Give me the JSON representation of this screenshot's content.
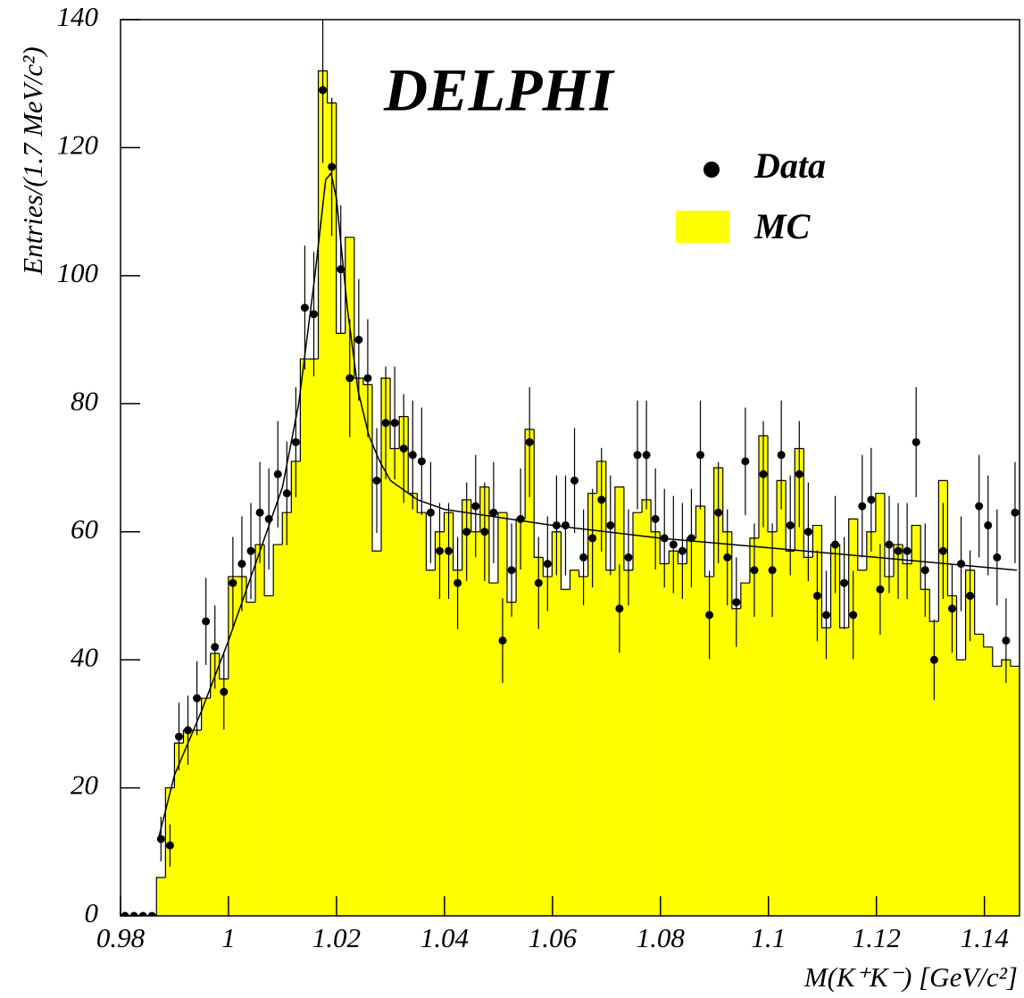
{
  "chart_data": {
    "type": "histogram",
    "annotation": "DELPHI",
    "x_label": "M(K⁺K⁻) [GeV/c²]",
    "y_label": "Entries/(1.7 MeV/c²)",
    "xlim": [
      0.98,
      1.1465
    ],
    "ylim": [
      0,
      140
    ],
    "xticks": [
      0.98,
      1,
      1.02,
      1.04,
      1.06,
      1.08,
      1.1,
      1.12,
      1.14
    ],
    "yticks": [
      0,
      20,
      40,
      60,
      80,
      100,
      120,
      140
    ],
    "legend": "upper right",
    "bins": [
      0.98,
      0.981665,
      0.98333,
      0.984995,
      0.98666,
      0.988325,
      0.98999,
      0.991655,
      0.99332,
      0.994985,
      0.99665,
      0.998315,
      0.99998,
      1.001645,
      1.00331,
      1.004975,
      1.00664,
      1.008305,
      1.00997,
      1.011635,
      1.0133,
      1.014965,
      1.01663,
      1.018295,
      1.01996,
      1.021625,
      1.02329,
      1.024955,
      1.02662,
      1.028285,
      1.02995,
      1.031615,
      1.03328,
      1.034945,
      1.03661,
      1.038275,
      1.03994,
      1.041605,
      1.04327,
      1.044935,
      1.0466,
      1.048265,
      1.04993,
      1.051595,
      1.05326,
      1.054925,
      1.05659,
      1.058255,
      1.05992,
      1.061585,
      1.06325,
      1.064915,
      1.06658,
      1.068245,
      1.06991,
      1.071575,
      1.07324,
      1.074905,
      1.07657,
      1.078235,
      1.0799,
      1.081565,
      1.08323,
      1.084895,
      1.08656,
      1.088225,
      1.08989,
      1.091555,
      1.09322,
      1.094885,
      1.09655,
      1.098215,
      1.09988,
      1.101545,
      1.10321,
      1.104875,
      1.10654,
      1.108205,
      1.10987,
      1.111535,
      1.1132,
      1.114865,
      1.11653,
      1.118195,
      1.11986,
      1.121525,
      1.12319,
      1.124855,
      1.12652,
      1.128185,
      1.12985,
      1.131515,
      1.13318,
      1.134845,
      1.13651,
      1.138175,
      1.13984,
      1.141505,
      1.14317,
      1.144835,
      1.1465
    ],
    "series": [
      {
        "name": "Data",
        "color": "#000000",
        "values": [
          0,
          0,
          0,
          0,
          12,
          11,
          28,
          29,
          34,
          46,
          42,
          35,
          52,
          55,
          57,
          63,
          62,
          69,
          66,
          74,
          95,
          94,
          129,
          117,
          101,
          84,
          90,
          84,
          68,
          77,
          77,
          73,
          72,
          71,
          63,
          57,
          57,
          52,
          60,
          64,
          60,
          63,
          43,
          54,
          62,
          74,
          52,
          55,
          61,
          61,
          68,
          56,
          59,
          65,
          61,
          48,
          56,
          72,
          72,
          62,
          59,
          58,
          57,
          59,
          72,
          47,
          63,
          56,
          49,
          71,
          54,
          69,
          54,
          72,
          61,
          69,
          60,
          50,
          47,
          58,
          52,
          47,
          64,
          65,
          51,
          58,
          57,
          57,
          74,
          54,
          40,
          57,
          48,
          55,
          50,
          64,
          61,
          56,
          43,
          63
        ],
        "errors": [
          0,
          0,
          0,
          0,
          3.5,
          3.3,
          5.3,
          5.4,
          5.8,
          6.8,
          6.5,
          5.9,
          7.2,
          7.4,
          7.5,
          7.9,
          7.9,
          8.3,
          8.1,
          8.6,
          9.7,
          9.7,
          11.4,
          10.8,
          10.0,
          9.2,
          9.5,
          9.2,
          8.2,
          8.8,
          8.8,
          8.5,
          8.5,
          8.4,
          7.9,
          7.5,
          7.5,
          7.2,
          7.7,
          8.0,
          7.7,
          7.9,
          6.6,
          7.3,
          7.9,
          8.6,
          7.2,
          7.4,
          7.8,
          7.8,
          8.2,
          7.5,
          7.7,
          8.1,
          7.8,
          6.9,
          7.5,
          8.5,
          8.5,
          7.9,
          7.7,
          7.6,
          7.5,
          7.7,
          8.5,
          6.9,
          7.9,
          7.5,
          7.0,
          8.4,
          7.3,
          8.3,
          7.3,
          8.5,
          7.8,
          8.3,
          7.7,
          7.1,
          6.9,
          7.6,
          7.2,
          6.9,
          8.0,
          8.1,
          7.1,
          7.6,
          7.5,
          7.5,
          8.6,
          7.3,
          6.3,
          7.5,
          6.9,
          7.4,
          7.1,
          8.0,
          7.8,
          7.5,
          6.6,
          7.9
        ]
      },
      {
        "name": "MC",
        "color": "#ffff00",
        "values": [
          0,
          0,
          0,
          0,
          6,
          20,
          27,
          29,
          29,
          34,
          41,
          37,
          53,
          53,
          49,
          58,
          50,
          58,
          63,
          71,
          87,
          87,
          132,
          127,
          91,
          106,
          84,
          83,
          57,
          84,
          73,
          78,
          66,
          63,
          54,
          60,
          63,
          54,
          65,
          60,
          67,
          52,
          63,
          49,
          62,
          76,
          56,
          53,
          60,
          51,
          54,
          53,
          66,
          71,
          54,
          67,
          54,
          63,
          65,
          60,
          55,
          57,
          55,
          59,
          64,
          53,
          70,
          60,
          48,
          52,
          59,
          75,
          60,
          68,
          57,
          73,
          56,
          61,
          45,
          58,
          45,
          62,
          54,
          60,
          66,
          53,
          58,
          55,
          61,
          51,
          46,
          68,
          50,
          40,
          54,
          44,
          42,
          39,
          40,
          39
        ]
      }
    ],
    "fit": {
      "color": "#000000",
      "x": [
        0.987,
        0.99,
        0.995,
        1.0,
        1.005,
        1.01,
        1.013,
        1.016,
        1.018,
        1.019,
        1.02,
        1.022,
        1.024,
        1.026,
        1.028,
        1.03,
        1.035,
        1.04,
        1.06,
        1.08,
        1.1,
        1.12,
        1.146
      ],
      "values": [
        12,
        22,
        32,
        43,
        55,
        67,
        80,
        100,
        115,
        116,
        112,
        95,
        82,
        75,
        71,
        68,
        65,
        63.5,
        61,
        59,
        57.5,
        56,
        54
      ]
    }
  }
}
